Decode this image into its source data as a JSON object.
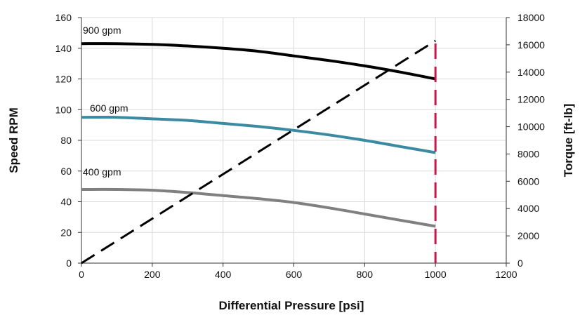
{
  "chart_data": {
    "type": "line",
    "title": "",
    "xlabel": "Differential Pressure [psi]",
    "ylabel": "Speed RPM",
    "y2label": "Torque [ft-lb]",
    "xlim": [
      0,
      1200
    ],
    "ylim": [
      0,
      160
    ],
    "y2lim": [
      0,
      18000
    ],
    "xticks": [
      0,
      200,
      400,
      600,
      800,
      1000,
      1200
    ],
    "yticks": [
      0,
      20,
      40,
      60,
      80,
      100,
      120,
      140,
      160
    ],
    "y2ticks": [
      0,
      2000,
      4000,
      6000,
      8000,
      10000,
      12000,
      14000,
      16000,
      18000
    ],
    "grid": true,
    "legend": "none",
    "series": [
      {
        "name": "900 gpm",
        "axis": "left",
        "color": "#000000",
        "style": "solid",
        "x": [
          0,
          100,
          200,
          300,
          400,
          500,
          600,
          700,
          800,
          900,
          1000
        ],
        "y": [
          143,
          143,
          142.5,
          141.5,
          140,
          138,
          135,
          132,
          128.5,
          124.5,
          120
        ]
      },
      {
        "name": "600 gpm",
        "axis": "left",
        "color": "#3a8aa1",
        "style": "solid",
        "x": [
          0,
          100,
          200,
          300,
          400,
          500,
          600,
          700,
          800,
          900,
          1000
        ],
        "y": [
          95,
          95,
          94,
          93,
          91,
          89,
          86.5,
          83.5,
          80,
          76,
          72
        ]
      },
      {
        "name": "400 gpm",
        "axis": "left",
        "color": "#808080",
        "style": "solid",
        "x": [
          0,
          100,
          200,
          300,
          400,
          500,
          600,
          700,
          800,
          900,
          1000
        ],
        "y": [
          48,
          48,
          47.5,
          46,
          44,
          42,
          39.5,
          36,
          32,
          28,
          24
        ]
      },
      {
        "axis": "right",
        "color": "#000000",
        "style": "dashed",
        "x": [
          0,
          1000
        ],
        "y": [
          0,
          16300
        ]
      }
    ],
    "vline": {
      "x": 1000,
      "color": "#c8174a",
      "style": "dashed"
    }
  }
}
